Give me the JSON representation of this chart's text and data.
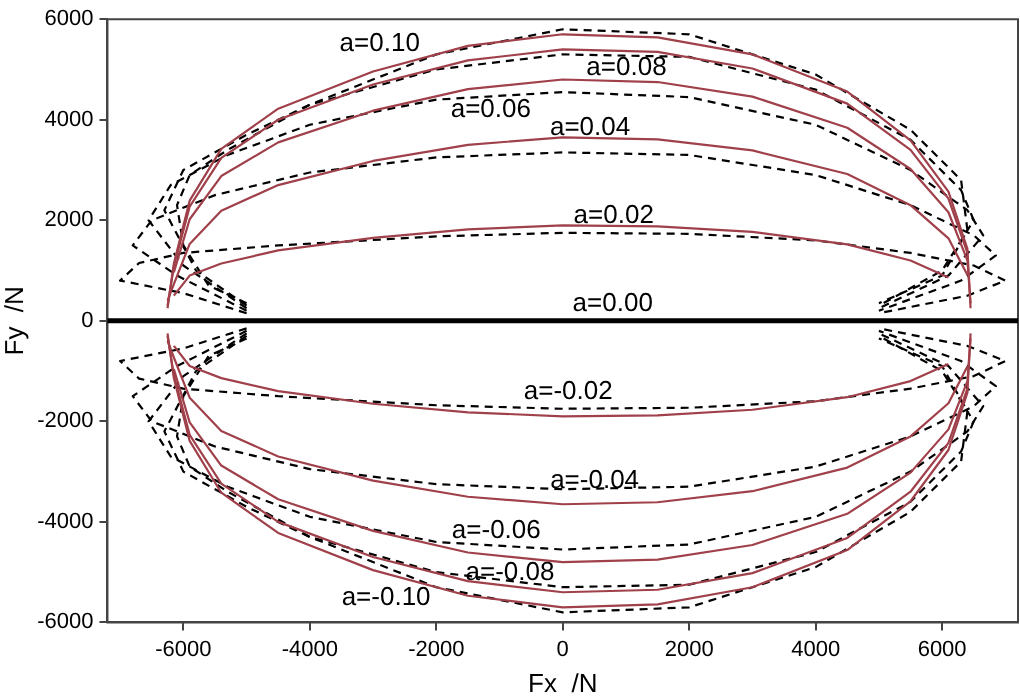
{
  "chart_data": {
    "type": "line",
    "xlabel": "Fx  /N",
    "ylabel": "Fy  /N",
    "xlim": [
      -7200,
      7200
    ],
    "ylim": [
      -6000,
      6000
    ],
    "xticks": [
      -6000,
      -4000,
      -2000,
      0,
      2000,
      4000,
      6000
    ],
    "yticks": [
      -6000,
      -4000,
      -2000,
      0,
      2000,
      4000,
      6000
    ],
    "grid": false,
    "legend": false,
    "marker": "none",
    "series": [
      {
        "color": "#a0404a",
        "line_style": "solid",
        "x": [
          -6250,
          -6150,
          -5900,
          -5400,
          -4500,
          -3000,
          -1500,
          0,
          1500,
          3000,
          4500,
          5500,
          6100,
          6400,
          6450
        ],
        "values": [
          250,
          1140,
          2390,
          3420,
          4220,
          4960,
          5470,
          5700,
          5640,
          5300,
          4560,
          3590,
          2570,
          1430,
          250
        ]
      },
      {
        "color": "#a0404a",
        "line_style": "solid",
        "x": [
          -6250,
          -6150,
          -5900,
          -5400,
          -4500,
          -3000,
          -1500,
          0,
          1500,
          3000,
          4500,
          5500,
          6100,
          6400
        ],
        "values": [
          300,
          1080,
          2270,
          3240,
          4000,
          4700,
          5180,
          5400,
          5350,
          5020,
          4320,
          3400,
          2430,
          1350
        ]
      },
      {
        "color": "#a0404a",
        "line_style": "solid",
        "x": [
          -6150,
          -5900,
          -5400,
          -4500,
          -3000,
          -1500,
          0,
          1500,
          3000,
          4500,
          5500,
          6100,
          6400,
          6450
        ],
        "values": [
          960,
          2020,
          2880,
          3550,
          4180,
          4610,
          4800,
          4750,
          4460,
          3840,
          3020,
          2160,
          1200,
          350
        ]
      },
      {
        "color": "#a0404a",
        "line_style": "solid",
        "x": [
          -6250,
          -6150,
          -5900,
          -5400,
          -4500,
          -3000,
          -1500,
          0,
          1500,
          3000,
          4500,
          5500,
          6100,
          6400
        ],
        "values": [
          400,
          730,
          1530,
          2190,
          2700,
          3180,
          3500,
          3650,
          3610,
          3390,
          2920,
          2300,
          1640,
          910
        ]
      },
      {
        "color": "#a0404a",
        "line_style": "solid",
        "x": [
          -6150,
          -5900,
          -5400,
          -4500,
          -3000,
          -1500,
          0,
          1500,
          3000,
          4500,
          5500,
          6100
        ],
        "values": [
          500,
          900,
          1140,
          1400,
          1650,
          1820,
          1900,
          1880,
          1770,
          1520,
          1200,
          860
        ]
      },
      {
        "color": "#a0404a",
        "line_style": "solid",
        "x": [
          -6250,
          -6150,
          -5900,
          -5400,
          -4500,
          -3000,
          -1500,
          0,
          1500,
          3000,
          4500,
          5500,
          6100,
          6400,
          6450
        ],
        "values": [
          -250,
          -1140,
          -2390,
          -3420,
          -4220,
          -4960,
          -5470,
          -5700,
          -5640,
          -5300,
          -4560,
          -3590,
          -2570,
          -1430,
          -250
        ]
      },
      {
        "color": "#a0404a",
        "line_style": "solid",
        "x": [
          -6250,
          -6150,
          -5900,
          -5400,
          -4500,
          -3000,
          -1500,
          0,
          1500,
          3000,
          4500,
          5500,
          6100,
          6400
        ],
        "values": [
          -300,
          -1080,
          -2270,
          -3240,
          -4000,
          -4700,
          -5180,
          -5400,
          -5350,
          -5020,
          -4320,
          -3400,
          -2430,
          -1350
        ]
      },
      {
        "color": "#a0404a",
        "line_style": "solid",
        "x": [
          -6150,
          -5900,
          -5400,
          -4500,
          -3000,
          -1500,
          0,
          1500,
          3000,
          4500,
          5500,
          6100,
          6400,
          6450
        ],
        "values": [
          -960,
          -2020,
          -2880,
          -3550,
          -4180,
          -4610,
          -4800,
          -4750,
          -4460,
          -3840,
          -3020,
          -2160,
          -1200,
          -350
        ]
      },
      {
        "color": "#a0404a",
        "line_style": "solid",
        "x": [
          -6250,
          -6150,
          -5900,
          -5400,
          -4500,
          -3000,
          -1500,
          0,
          1500,
          3000,
          4500,
          5500,
          6100,
          6400
        ],
        "values": [
          -400,
          -730,
          -1530,
          -2190,
          -2700,
          -3180,
          -3500,
          -3650,
          -3610,
          -3390,
          -2920,
          -2300,
          -1640,
          -910
        ]
      },
      {
        "color": "#a0404a",
        "line_style": "solid",
        "x": [
          -6150,
          -5900,
          -5400,
          -4500,
          -3000,
          -1500,
          0,
          1500,
          3000,
          4500,
          5500,
          6100
        ],
        "values": [
          -500,
          -900,
          -1140,
          -1400,
          -1650,
          -1820,
          -1900,
          -1880,
          -1770,
          -1520,
          -1200,
          -860
        ]
      },
      {
        "color": "#000000",
        "line_style": "dashed",
        "x": [
          -5000,
          -5600,
          -6000,
          -6100,
          -5900,
          -5300,
          -4000,
          -2000,
          0,
          2000,
          4000,
          5500,
          6300,
          6400,
          6000,
          5000
        ],
        "values": [
          350,
          700,
          1500,
          2300,
          2900,
          3400,
          4300,
          5300,
          5800,
          5700,
          4900,
          3800,
          2800,
          1800,
          900,
          350
        ]
      },
      {
        "color": "#000000",
        "line_style": "dashed",
        "x": [
          -5000,
          -5800,
          -6300,
          -6000,
          -5000,
          -4000,
          -2000,
          0,
          2000,
          4000,
          5500,
          6300,
          6500,
          6000,
          5000
        ],
        "values": [
          300,
          1000,
          2200,
          3000,
          3700,
          4300,
          5000,
          5300,
          5250,
          4600,
          3600,
          2600,
          2000,
          1000,
          300
        ]
      },
      {
        "color": "#000000",
        "line_style": "dashed",
        "x": [
          -5000,
          -6000,
          -6550,
          -6200,
          -5300,
          -4000,
          -2000,
          0,
          2000,
          4000,
          5500,
          6400,
          6650,
          6100,
          5000
        ],
        "values": [
          250,
          1100,
          2000,
          2700,
          3300,
          3900,
          4400,
          4550,
          4450,
          3900,
          3000,
          2200,
          1700,
          900,
          250
        ]
      },
      {
        "color": "#000000",
        "line_style": "dashed",
        "x": [
          -5000,
          -6100,
          -6800,
          -6500,
          -5500,
          -4000,
          -2000,
          0,
          2000,
          4000,
          5500,
          6500,
          6850,
          6300,
          5000
        ],
        "values": [
          200,
          900,
          1500,
          2000,
          2500,
          2950,
          3250,
          3350,
          3300,
          2900,
          2300,
          1700,
          1300,
          800,
          200
        ]
      },
      {
        "color": "#000000",
        "line_style": "dashed",
        "x": [
          -5000,
          -6000,
          -7000,
          -6700,
          -6000,
          -4500,
          -2000,
          0,
          2000,
          4000,
          5500,
          6500,
          7000,
          6400,
          5000
        ],
        "values": [
          150,
          550,
          800,
          1150,
          1350,
          1500,
          1680,
          1750,
          1730,
          1600,
          1350,
          1100,
          800,
          500,
          150
        ]
      },
      {
        "color": "#000000",
        "line_style": "dashed",
        "x": [
          -5000,
          -5600,
          -6000,
          -6100,
          -5900,
          -5300,
          -4000,
          -2000,
          0,
          2000,
          4000,
          5500,
          6300,
          6400,
          6000,
          5000
        ],
        "values": [
          -350,
          -700,
          -1500,
          -2300,
          -2900,
          -3400,
          -4300,
          -5300,
          -5800,
          -5700,
          -4900,
          -3800,
          -2800,
          -1800,
          -900,
          -350
        ]
      },
      {
        "color": "#000000",
        "line_style": "dashed",
        "x": [
          -5000,
          -5800,
          -6300,
          -6000,
          -5000,
          -4000,
          -2000,
          0,
          2000,
          4000,
          5500,
          6300,
          6500,
          6000,
          5000
        ],
        "values": [
          -300,
          -1000,
          -2200,
          -3000,
          -3700,
          -4300,
          -5000,
          -5300,
          -5250,
          -4600,
          -3600,
          -2600,
          -2000,
          -1000,
          -300
        ]
      },
      {
        "color": "#000000",
        "line_style": "dashed",
        "x": [
          -5000,
          -6000,
          -6550,
          -6200,
          -5300,
          -4000,
          -2000,
          0,
          2000,
          4000,
          5500,
          6400,
          6650,
          6100,
          5000
        ],
        "values": [
          -250,
          -1100,
          -2000,
          -2700,
          -3300,
          -3900,
          -4400,
          -4550,
          -4450,
          -3900,
          -3000,
          -2200,
          -1700,
          -900,
          -250
        ]
      },
      {
        "color": "#000000",
        "line_style": "dashed",
        "x": [
          -5000,
          -6100,
          -6800,
          -6500,
          -5500,
          -4000,
          -2000,
          0,
          2000,
          4000,
          5500,
          6500,
          6850,
          6300,
          5000
        ],
        "values": [
          -200,
          -900,
          -1500,
          -2000,
          -2500,
          -2950,
          -3250,
          -3350,
          -3300,
          -2900,
          -2300,
          -1700,
          -1300,
          -800,
          -200
        ]
      },
      {
        "color": "#000000",
        "line_style": "dashed",
        "x": [
          -5000,
          -6000,
          -7000,
          -6700,
          -6000,
          -4500,
          -2000,
          0,
          2000,
          4000,
          5500,
          6500,
          7000,
          6400,
          5000
        ],
        "values": [
          -150,
          -550,
          -800,
          -1150,
          -1350,
          -1500,
          -1680,
          -1750,
          -1730,
          -1600,
          -1350,
          -1100,
          -800,
          -500,
          -150
        ]
      }
    ],
    "ref_lines": [
      {
        "axis": "y",
        "value": 0,
        "label": "a=0.00",
        "color": "#000000"
      }
    ],
    "annotations": [
      "a=0.10",
      "a=0.08",
      "a=0.06",
      "a=0.04",
      "a=0.02",
      "a=-0.02",
      "a=-0.04",
      "a=-0.06",
      "a=-0.08",
      "a=-0.10"
    ]
  }
}
